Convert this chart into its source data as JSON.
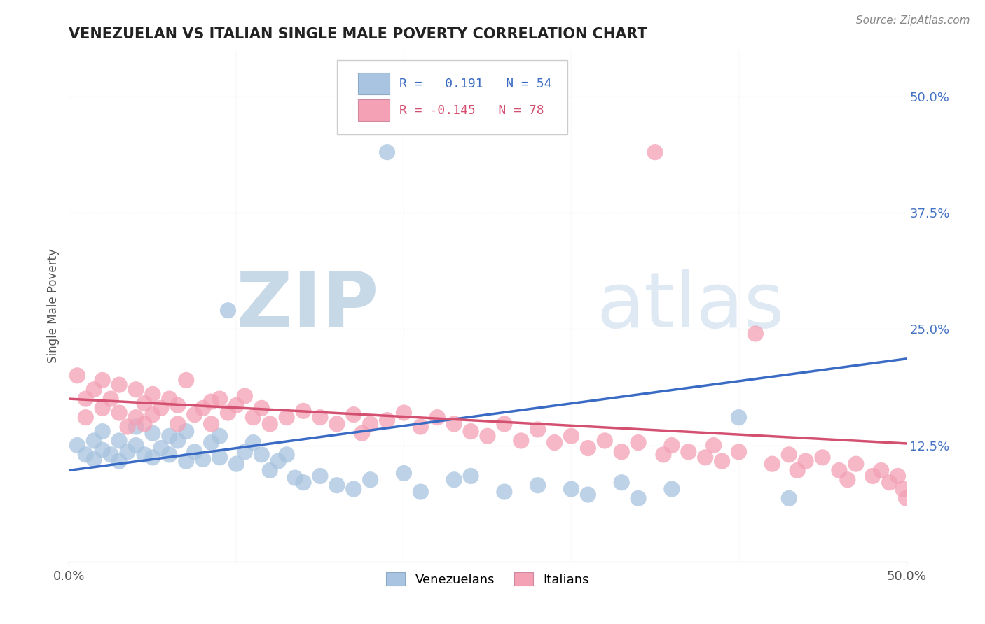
{
  "title": "VENEZUELAN VS ITALIAN SINGLE MALE POVERTY CORRELATION CHART",
  "source": "Source: ZipAtlas.com",
  "ylabel": "Single Male Poverty",
  "xlim": [
    0.0,
    0.5
  ],
  "ylim": [
    0.0,
    0.55
  ],
  "ytick_labels": [
    "12.5%",
    "25.0%",
    "37.5%",
    "50.0%"
  ],
  "ytick_positions": [
    0.125,
    0.25,
    0.375,
    0.5
  ],
  "r_venezuelan": 0.191,
  "n_venezuelan": 54,
  "r_italian": -0.145,
  "n_italian": 78,
  "venezuelan_color": "#a8c4e0",
  "italian_color": "#f4a0b5",
  "trend_blue": "#3a6bc4",
  "trend_pink": "#d45070",
  "background_color": "#ffffff",
  "watermark": "ZIPatlas",
  "watermark_color_zip": "#b0c8e0",
  "watermark_color_atlas": "#c0d8e8",
  "grid_color": "#cccccc",
  "ytick_color": "#4472c4",
  "title_color": "#222222",
  "source_color": "#888888",
  "ylabel_color": "#555555",
  "xtick_color": "#555555",
  "blue_trend_start_y": 0.098,
  "blue_trend_end_y": 0.218,
  "pink_trend_start_y": 0.175,
  "pink_trend_end_y": 0.127
}
